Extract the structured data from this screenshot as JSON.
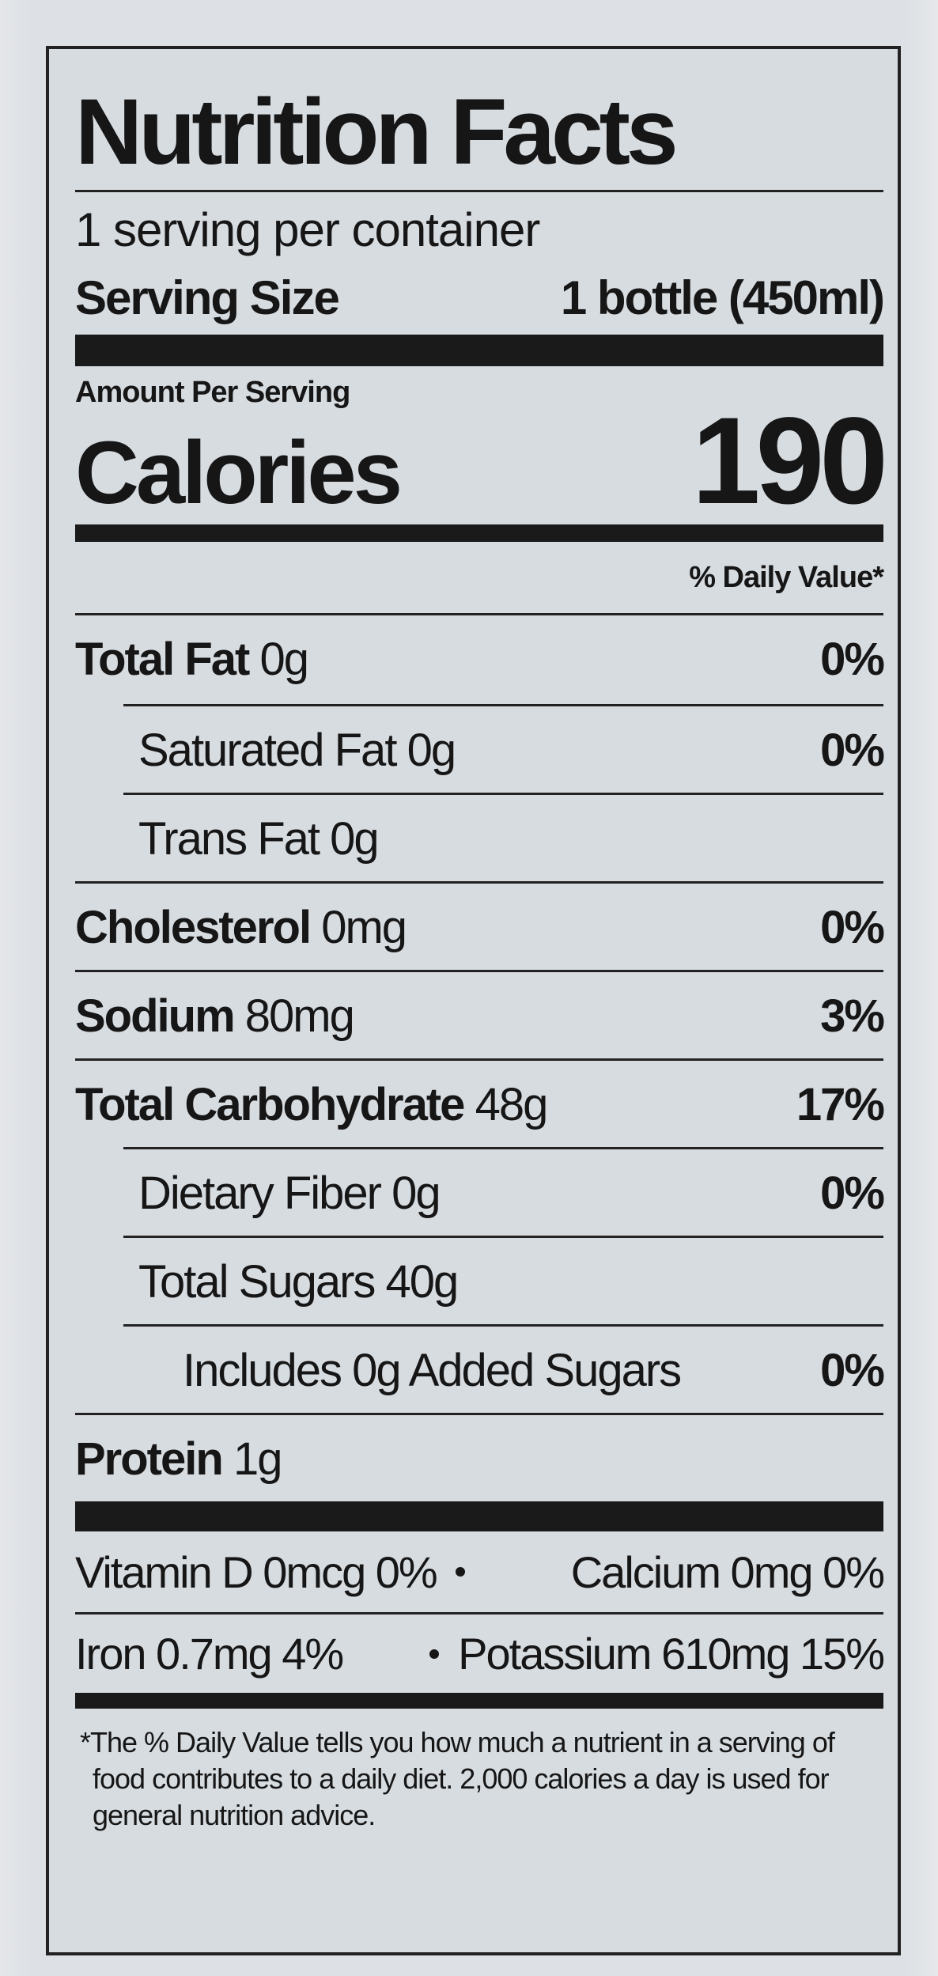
{
  "title": "Nutrition Facts",
  "servings": "1 serving per container",
  "serving_size": {
    "label": "Serving Size",
    "value": "1 bottle (450ml)"
  },
  "amount_per_serving": "Amount Per Serving",
  "calories": {
    "label": "Calories",
    "value": "190"
  },
  "daily_value_header": "% Daily Value*",
  "rows": [
    {
      "nutrient": "Total Fat",
      "amount": "0g",
      "dv": "0%"
    },
    {
      "nutrient": "Saturated Fat",
      "amount": "0g",
      "dv": "0%"
    },
    {
      "nutrient": "Trans Fat",
      "amount": "0g"
    },
    {
      "nutrient": "Cholesterol",
      "amount": "0mg",
      "dv": "0%"
    },
    {
      "nutrient": "Sodium",
      "amount": "80mg",
      "dv": "3%"
    },
    {
      "nutrient": "Total Carbohydrate",
      "amount": "48g",
      "dv": "17%"
    },
    {
      "nutrient": "Dietary Fiber",
      "amount": "0g",
      "dv": "0%"
    },
    {
      "nutrient": "Total Sugars",
      "amount": "40g"
    },
    {
      "nutrient": "Includes 0g Added Sugars",
      "dv": "0%"
    },
    {
      "nutrient": "Protein",
      "amount": "1g"
    }
  ],
  "vitamins": [
    {
      "left": "Vitamin D 0mcg 0%",
      "right": "Calcium 0mg 0%"
    },
    {
      "left": "Iron 0.7mg 4%",
      "right": "Potassium 610mg 15%"
    }
  ],
  "footnote": "*The % Daily Value tells you how much a nutrient in a serving of food contributes to a daily diet. 2,000 calories a day is used for general nutrition advice."
}
